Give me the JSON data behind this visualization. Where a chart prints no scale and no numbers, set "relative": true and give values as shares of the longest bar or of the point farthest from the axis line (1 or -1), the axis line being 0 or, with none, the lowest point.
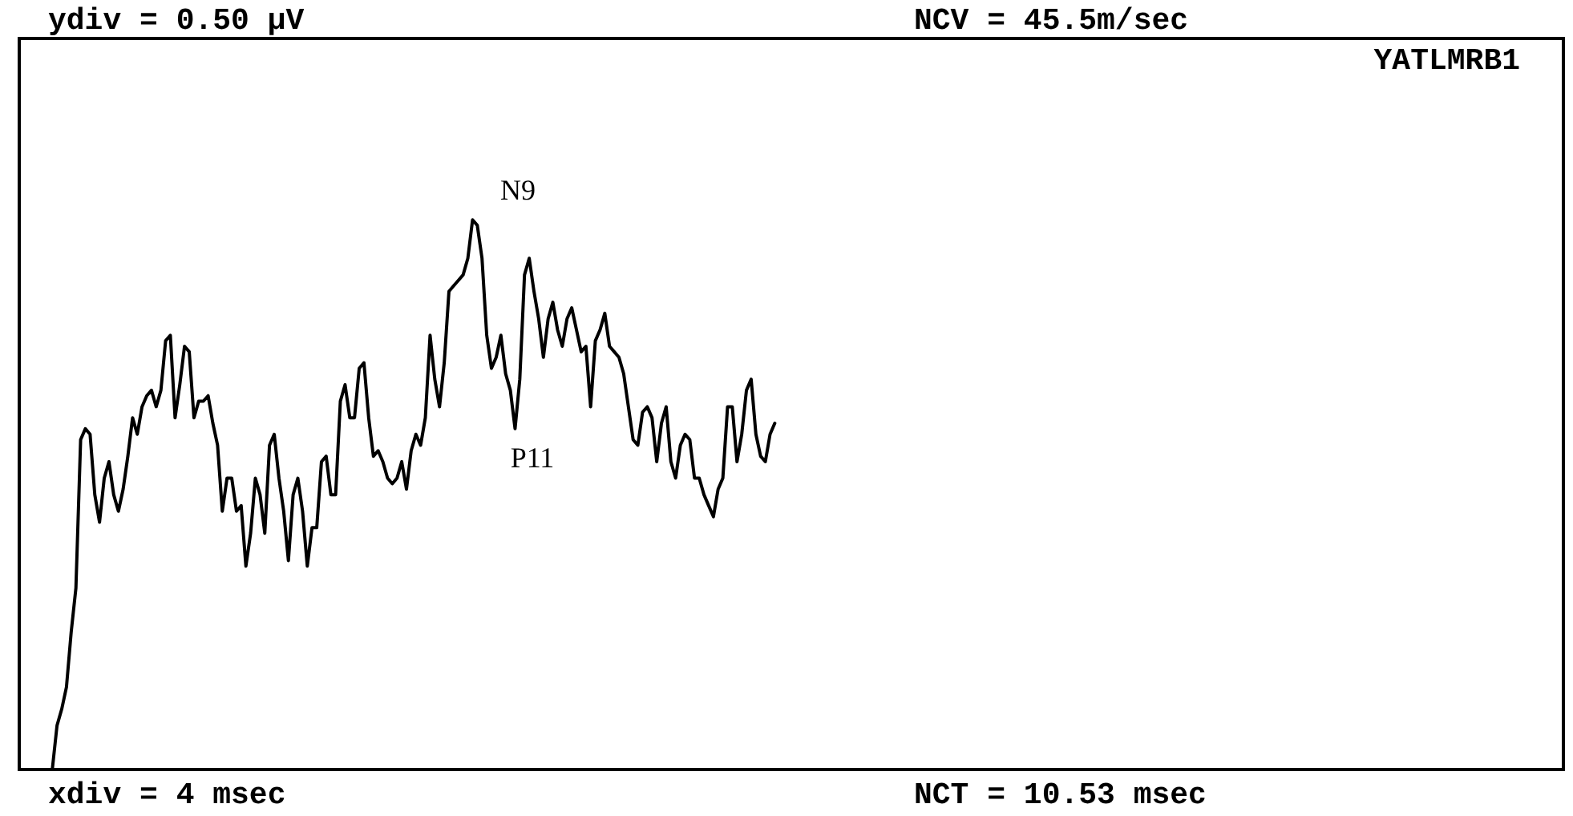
{
  "chart_data": {
    "type": "line",
    "relative": true,
    "grid": false,
    "legend": false,
    "tick_labels": false,
    "marker": "none",
    "categories": [
      null,
      null,
      null,
      null,
      null,
      null,
      null,
      null,
      null,
      null,
      null,
      null,
      null,
      null,
      null,
      null,
      null,
      null,
      null,
      null,
      null,
      null,
      null,
      null,
      null,
      null,
      null,
      null,
      null,
      null,
      null,
      null,
      null,
      null,
      null,
      null,
      null,
      null,
      null,
      null,
      null,
      null,
      null,
      null,
      null,
      null,
      null,
      null,
      null,
      null,
      null,
      null,
      null,
      null,
      null,
      null,
      null,
      null,
      null,
      null,
      null,
      null,
      null,
      null,
      null,
      null,
      null,
      null,
      null,
      null,
      null,
      null,
      null,
      null,
      null,
      null,
      null,
      null,
      null,
      null,
      null,
      null,
      null,
      null,
      null,
      null,
      null,
      null,
      null,
      null,
      null,
      null,
      null,
      null,
      null,
      null,
      null,
      null,
      null,
      null,
      null,
      null,
      null,
      null,
      null,
      null,
      null,
      null,
      null,
      null,
      null,
      null,
      null,
      null,
      null,
      null,
      null,
      null,
      null,
      null,
      null,
      null,
      null,
      null,
      null,
      null,
      null,
      null,
      null,
      null,
      null,
      null,
      null,
      null,
      null,
      null,
      null,
      null,
      null,
      null,
      null,
      null,
      null,
      null,
      null,
      null,
      null,
      null,
      null,
      null,
      null,
      null,
      null,
      null,
      null,
      null,
      null,
      null,
      null,
      null,
      null,
      null,
      null,
      null,
      null,
      null,
      null,
      null,
      null,
      null,
      null,
      null,
      null,
      null,
      null,
      null,
      null,
      null,
      null,
      null,
      null,
      null,
      null,
      null,
      null,
      null,
      null,
      null,
      null,
      null,
      null,
      null,
      null,
      null,
      null,
      null,
      null,
      null,
      null,
      null,
      null,
      null,
      null,
      null,
      null,
      null,
      null,
      null,
      null,
      null,
      null,
      null,
      null,
      null,
      null,
      null,
      null,
      null,
      null,
      null,
      null,
      null,
      null,
      null,
      null,
      null,
      null,
      null,
      null,
      null,
      null,
      null,
      null,
      null,
      null,
      null,
      null,
      null,
      null,
      null,
      null,
      null,
      null,
      null,
      null,
      null,
      null,
      null,
      null,
      null,
      null,
      null,
      null,
      null,
      null,
      null,
      null,
      null,
      null,
      null,
      null,
      null,
      null,
      null,
      null,
      null,
      null,
      null,
      null,
      null,
      null,
      null,
      null,
      null,
      null,
      null,
      null,
      null,
      null,
      null,
      null,
      null,
      null,
      null,
      null,
      null,
      null,
      null,
      null,
      null,
      null,
      null,
      null,
      null,
      null,
      null,
      null,
      null,
      null,
      null,
      null,
      null,
      null,
      null,
      null,
      null,
      null,
      null,
      null,
      null,
      null,
      null,
      null,
      null,
      null,
      null,
      null,
      null,
      null,
      null,
      null,
      null,
      null,
      null,
      null,
      null,
      null,
      null
    ],
    "series": [
      {
        "color": "#000000",
        "values": [
          null,
          null,
          null,
          null,
          null,
          null,
          null,
          0,
          0.08,
          0.11,
          0.15,
          0.25,
          0.33,
          0.6,
          0.62,
          0.61,
          0.5,
          0.45,
          0.53,
          0.56,
          0.5,
          0.47,
          0.51,
          0.57,
          0.64,
          0.61,
          0.66,
          0.68,
          0.69,
          0.66,
          0.69,
          0.78,
          0.79,
          0.64,
          0.7,
          0.77,
          0.76,
          0.64,
          0.67,
          0.67,
          0.68,
          0.63,
          0.59,
          0.47,
          0.53,
          0.53,
          0.47,
          0.48,
          0.37,
          0.43,
          0.53,
          0.5,
          0.43,
          0.59,
          0.61,
          0.53,
          0.47,
          0.38,
          0.5,
          0.53,
          0.47,
          0.37,
          0.44,
          0.44,
          0.56,
          0.57,
          0.5,
          0.5,
          0.67,
          0.7,
          0.64,
          0.64,
          0.73,
          0.74,
          0.64,
          0.57,
          0.58,
          0.56,
          0.53,
          0.52,
          0.53,
          0.56,
          0.51,
          0.58,
          0.61,
          0.59,
          0.64,
          0.79,
          0.71,
          0.66,
          0.74,
          0.87,
          0.88,
          0.89,
          0.9,
          0.93,
          1,
          0.99,
          0.93,
          0.79,
          0.73,
          0.75,
          0.79,
          0.72,
          0.69,
          0.62,
          0.71,
          0.9,
          0.93,
          0.87,
          0.82,
          0.75,
          0.82,
          0.85,
          0.8,
          0.77,
          0.82,
          0.84,
          0.8,
          0.76,
          0.77,
          0.66,
          0.78,
          0.8,
          0.83,
          0.77,
          0.76,
          0.75,
          0.72,
          0.66,
          0.6,
          0.59,
          0.65,
          0.66,
          0.64,
          0.56,
          0.63,
          0.66,
          0.56,
          0.53,
          0.59,
          0.61,
          0.6,
          0.53,
          0.53,
          0.5,
          0.48,
          0.46,
          0.51,
          0.53,
          0.66,
          0.66,
          0.56,
          0.61,
          0.69,
          0.71,
          0.61,
          0.57,
          0.56,
          0.61,
          0.63,
          null,
          null,
          null,
          null,
          null,
          null,
          null,
          null,
          null,
          null,
          null,
          null,
          null,
          null,
          null,
          null,
          null,
          null,
          null,
          null,
          null,
          null,
          null,
          null,
          null,
          null,
          null,
          null,
          null,
          null,
          null,
          null,
          null,
          null,
          null,
          null,
          null,
          null,
          null,
          null,
          null,
          null,
          null,
          null,
          null,
          null,
          null,
          null,
          null,
          null,
          null,
          null,
          null,
          null,
          null,
          null,
          null,
          null,
          null,
          null,
          null,
          null,
          null,
          null,
          null,
          null,
          null,
          null,
          null,
          null,
          null,
          null,
          null,
          null,
          null,
          null,
          null,
          null,
          null,
          null,
          null,
          null,
          null,
          null,
          null,
          null,
          null,
          null,
          null,
          null,
          null,
          null,
          null,
          null,
          null,
          null,
          null,
          null,
          null,
          null,
          null,
          null,
          null,
          null,
          null,
          null,
          null,
          null,
          null,
          null,
          null,
          null,
          null,
          null,
          null,
          null,
          null,
          null,
          null,
          null,
          null,
          null,
          null,
          null,
          null,
          null,
          null,
          null,
          null,
          null,
          null,
          null,
          null,
          null,
          null,
          null,
          null,
          null,
          null,
          null,
          null,
          null,
          null,
          null,
          null,
          null,
          null,
          null,
          null,
          null,
          null,
          null,
          null,
          null,
          null,
          null,
          null,
          null,
          null,
          null,
          null,
          null,
          null,
          null,
          null,
          null,
          null
        ]
      }
    ],
    "annotations": [
      "ydiv = 0.50 µV",
      "NCV = 45.5m/sec",
      "YATLMRB1",
      "xdiv = 4 msec",
      "NCT = 10.53 msec",
      "N9",
      "P11"
    ]
  }
}
